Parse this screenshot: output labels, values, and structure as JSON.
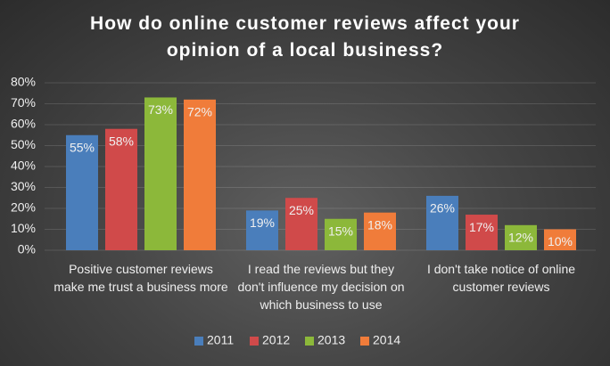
{
  "chart_data": {
    "type": "bar",
    "title": "How do online customer reviews affect your opinion of a local business?",
    "categories": [
      "Positive customer reviews make me trust a business more",
      "I read the reviews but they don't influence my decision on which business to use",
      "I don't take notice of online customer reviews"
    ],
    "series": [
      {
        "name": "2011",
        "color": "#4a7ebb",
        "values": [
          55,
          19,
          26
        ],
        "value_labels": [
          "55%",
          "19%",
          "26%"
        ]
      },
      {
        "name": "2012",
        "color": "#d04a4a",
        "values": [
          58,
          25,
          17
        ],
        "value_labels": [
          "58%",
          "25%",
          "17%"
        ]
      },
      {
        "name": "2013",
        "color": "#8cb83a",
        "values": [
          73,
          15,
          12
        ],
        "value_labels": [
          "73%",
          "15%",
          "12%"
        ]
      },
      {
        "name": "2014",
        "color": "#f07c3a",
        "values": [
          72,
          18,
          10
        ],
        "value_labels": [
          "72%",
          "18%",
          "10%"
        ]
      }
    ],
    "ylim": [
      0,
      80
    ],
    "yticks": [
      {
        "value": 0,
        "label": "0%"
      },
      {
        "value": 10,
        "label": "10%"
      },
      {
        "value": 20,
        "label": "20%"
      },
      {
        "value": 30,
        "label": "30%"
      },
      {
        "value": 40,
        "label": "40%"
      },
      {
        "value": 50,
        "label": "50%"
      },
      {
        "value": 60,
        "label": "60%"
      },
      {
        "value": 70,
        "label": "70%"
      },
      {
        "value": 80,
        "label": "80%"
      }
    ],
    "grid": true,
    "legend": "bottom"
  }
}
